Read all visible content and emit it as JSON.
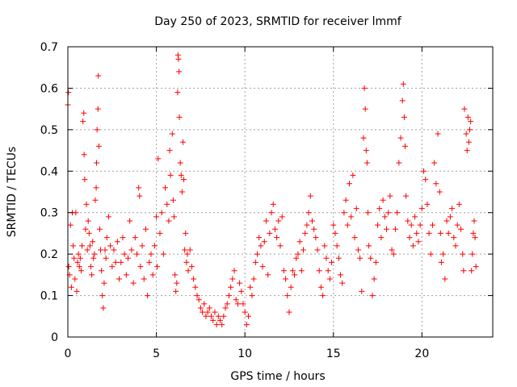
{
  "chart_data": {
    "type": "scatter",
    "title": "Day 250 of 2023, SRMTID for receiver lmmf",
    "xlabel": "GPS time / hours",
    "ylabel": "SRMTID / TECUs",
    "xlim": [
      0,
      24
    ],
    "ylim": [
      0,
      0.7
    ],
    "xticks": [
      0,
      5,
      10,
      15,
      20
    ],
    "xtick_labels": [
      "0",
      "5",
      "10",
      "15",
      "20"
    ],
    "yticks": [
      0,
      0.1,
      0.2,
      0.3,
      0.4,
      0.5,
      0.6,
      0.7
    ],
    "ytick_labels": [
      "0",
      "0.1",
      "0.2",
      "0.3",
      "0.4",
      "0.5",
      "0.6",
      "0.7"
    ],
    "grid": true,
    "marker": "+",
    "color": "#ff0000",
    "series": [
      {
        "name": "SRMTID",
        "points": [
          [
            0.0,
            0.56
          ],
          [
            0.03,
            0.59
          ],
          [
            0.05,
            0.17
          ],
          [
            0.1,
            0.15
          ],
          [
            0.15,
            0.27
          ],
          [
            0.2,
            0.12
          ],
          [
            0.25,
            0.3
          ],
          [
            0.3,
            0.22
          ],
          [
            0.35,
            0.19
          ],
          [
            0.4,
            0.14
          ],
          [
            0.45,
            0.3
          ],
          [
            0.5,
            0.11
          ],
          [
            0.55,
            0.18
          ],
          [
            0.6,
            0.2
          ],
          [
            0.65,
            0.17
          ],
          [
            0.7,
            0.19
          ],
          [
            0.75,
            0.16
          ],
          [
            0.8,
            0.22
          ],
          [
            0.85,
            0.52
          ],
          [
            0.9,
            0.54
          ],
          [
            0.92,
            0.44
          ],
          [
            0.95,
            0.38
          ],
          [
            1.0,
            0.26
          ],
          [
            1.05,
            0.32
          ],
          [
            1.1,
            0.21
          ],
          [
            1.15,
            0.28
          ],
          [
            1.2,
            0.25
          ],
          [
            1.25,
            0.22
          ],
          [
            1.3,
            0.17
          ],
          [
            1.35,
            0.15
          ],
          [
            1.4,
            0.23
          ],
          [
            1.45,
            0.19
          ],
          [
            1.5,
            0.2
          ],
          [
            1.55,
            0.33
          ],
          [
            1.6,
            0.36
          ],
          [
            1.62,
            0.42
          ],
          [
            1.65,
            0.5
          ],
          [
            1.7,
            0.55
          ],
          [
            1.72,
            0.63
          ],
          [
            1.75,
            0.46
          ],
          [
            1.8,
            0.26
          ],
          [
            1.85,
            0.21
          ],
          [
            1.9,
            0.16
          ],
          [
            1.95,
            0.1
          ],
          [
            2.0,
            0.07
          ],
          [
            2.05,
            0.13
          ],
          [
            2.1,
            0.21
          ],
          [
            2.15,
            0.19
          ],
          [
            2.2,
            0.24
          ],
          [
            2.3,
            0.29
          ],
          [
            2.4,
            0.22
          ],
          [
            2.5,
            0.17
          ],
          [
            2.6,
            0.21
          ],
          [
            2.7,
            0.18
          ],
          [
            2.8,
            0.23
          ],
          [
            2.9,
            0.14
          ],
          [
            3.0,
            0.18
          ],
          [
            3.1,
            0.24
          ],
          [
            3.2,
            0.2
          ],
          [
            3.3,
            0.15
          ],
          [
            3.4,
            0.19
          ],
          [
            3.5,
            0.28
          ],
          [
            3.6,
            0.21
          ],
          [
            3.7,
            0.13
          ],
          [
            3.8,
            0.24
          ],
          [
            3.9,
            0.2
          ],
          [
            4.0,
            0.36
          ],
          [
            4.05,
            0.34
          ],
          [
            4.1,
            0.17
          ],
          [
            4.2,
            0.22
          ],
          [
            4.3,
            0.14
          ],
          [
            4.4,
            0.26
          ],
          [
            4.5,
            0.1
          ],
          [
            4.6,
            0.18
          ],
          [
            4.7,
            0.2
          ],
          [
            4.8,
            0.15
          ],
          [
            4.9,
            0.22
          ],
          [
            5.0,
            0.29
          ],
          [
            5.05,
            0.17
          ],
          [
            5.1,
            0.43
          ],
          [
            5.2,
            0.25
          ],
          [
            5.3,
            0.3
          ],
          [
            5.4,
            0.2
          ],
          [
            5.5,
            0.36
          ],
          [
            5.6,
            0.32
          ],
          [
            5.7,
            0.28
          ],
          [
            5.75,
            0.45
          ],
          [
            5.8,
            0.39
          ],
          [
            5.9,
            0.49
          ],
          [
            5.95,
            0.33
          ],
          [
            6.0,
            0.29
          ],
          [
            6.05,
            0.15
          ],
          [
            6.1,
            0.11
          ],
          [
            6.15,
            0.13
          ],
          [
            6.2,
            0.59
          ],
          [
            6.22,
            0.68
          ],
          [
            6.25,
            0.67
          ],
          [
            6.28,
            0.64
          ],
          [
            6.3,
            0.53
          ],
          [
            6.35,
            0.42
          ],
          [
            6.4,
            0.39
          ],
          [
            6.45,
            0.35
          ],
          [
            6.5,
            0.47
          ],
          [
            6.55,
            0.38
          ],
          [
            6.6,
            0.21
          ],
          [
            6.65,
            0.25
          ],
          [
            6.7,
            0.18
          ],
          [
            6.75,
            0.2
          ],
          [
            6.8,
            0.16
          ],
          [
            6.9,
            0.21
          ],
          [
            7.0,
            0.17
          ],
          [
            7.1,
            0.14
          ],
          [
            7.2,
            0.12
          ],
          [
            7.3,
            0.1
          ],
          [
            7.4,
            0.09
          ],
          [
            7.5,
            0.07
          ],
          [
            7.6,
            0.06
          ],
          [
            7.7,
            0.08
          ],
          [
            7.8,
            0.05
          ],
          [
            7.9,
            0.06
          ],
          [
            8.0,
            0.07
          ],
          [
            8.1,
            0.05
          ],
          [
            8.2,
            0.04
          ],
          [
            8.3,
            0.06
          ],
          [
            8.4,
            0.03
          ],
          [
            8.5,
            0.05
          ],
          [
            8.6,
            0.04
          ],
          [
            8.7,
            0.03
          ],
          [
            8.8,
            0.05
          ],
          [
            8.9,
            0.07
          ],
          [
            9.0,
            0.08
          ],
          [
            9.1,
            0.1
          ],
          [
            9.2,
            0.12
          ],
          [
            9.3,
            0.14
          ],
          [
            9.4,
            0.16
          ],
          [
            9.5,
            0.09
          ],
          [
            9.6,
            0.08
          ],
          [
            9.7,
            0.13
          ],
          [
            9.8,
            0.11
          ],
          [
            9.9,
            0.08
          ],
          [
            10.0,
            0.06
          ],
          [
            10.1,
            0.03
          ],
          [
            10.2,
            0.05
          ],
          [
            10.3,
            0.12
          ],
          [
            10.4,
            0.1
          ],
          [
            10.5,
            0.14
          ],
          [
            10.6,
            0.18
          ],
          [
            10.7,
            0.2
          ],
          [
            10.8,
            0.24
          ],
          [
            10.9,
            0.22
          ],
          [
            11.0,
            0.17
          ],
          [
            11.1,
            0.23
          ],
          [
            11.2,
            0.28
          ],
          [
            11.3,
            0.15
          ],
          [
            11.4,
            0.25
          ],
          [
            11.5,
            0.3
          ],
          [
            11.6,
            0.32
          ],
          [
            11.7,
            0.26
          ],
          [
            11.8,
            0.24
          ],
          [
            11.9,
            0.28
          ],
          [
            12.0,
            0.22
          ],
          [
            12.1,
            0.29
          ],
          [
            12.2,
            0.16
          ],
          [
            12.3,
            0.14
          ],
          [
            12.4,
            0.1
          ],
          [
            12.5,
            0.06
          ],
          [
            12.6,
            0.12
          ],
          [
            12.7,
            0.16
          ],
          [
            12.8,
            0.15
          ],
          [
            12.9,
            0.19
          ],
          [
            13.0,
            0.2
          ],
          [
            13.1,
            0.23
          ],
          [
            13.2,
            0.16
          ],
          [
            13.3,
            0.21
          ],
          [
            13.4,
            0.25
          ],
          [
            13.5,
            0.27
          ],
          [
            13.6,
            0.3
          ],
          [
            13.7,
            0.34
          ],
          [
            13.8,
            0.28
          ],
          [
            13.9,
            0.26
          ],
          [
            14.0,
            0.24
          ],
          [
            14.1,
            0.21
          ],
          [
            14.2,
            0.16
          ],
          [
            14.3,
            0.12
          ],
          [
            14.4,
            0.1
          ],
          [
            14.5,
            0.22
          ],
          [
            14.6,
            0.19
          ],
          [
            14.7,
            0.16
          ],
          [
            14.8,
            0.14
          ],
          [
            14.9,
            0.18
          ],
          [
            15.0,
            0.27
          ],
          [
            15.1,
            0.25
          ],
          [
            15.2,
            0.22
          ],
          [
            15.3,
            0.19
          ],
          [
            15.4,
            0.15
          ],
          [
            15.5,
            0.13
          ],
          [
            15.6,
            0.3
          ],
          [
            15.7,
            0.33
          ],
          [
            15.8,
            0.27
          ],
          [
            15.9,
            0.37
          ],
          [
            16.0,
            0.29
          ],
          [
            16.1,
            0.39
          ],
          [
            16.2,
            0.24
          ],
          [
            16.3,
            0.31
          ],
          [
            16.4,
            0.21
          ],
          [
            16.5,
            0.19
          ],
          [
            16.6,
            0.11
          ],
          [
            16.7,
            0.48
          ],
          [
            16.75,
            0.6
          ],
          [
            16.8,
            0.55
          ],
          [
            16.85,
            0.45
          ],
          [
            16.9,
            0.42
          ],
          [
            16.95,
            0.3
          ],
          [
            17.0,
            0.22
          ],
          [
            17.1,
            0.19
          ],
          [
            17.2,
            0.1
          ],
          [
            17.3,
            0.14
          ],
          [
            17.4,
            0.18
          ],
          [
            17.5,
            0.27
          ],
          [
            17.6,
            0.31
          ],
          [
            17.7,
            0.24
          ],
          [
            17.8,
            0.33
          ],
          [
            17.9,
            0.29
          ],
          [
            18.0,
            0.26
          ],
          [
            18.1,
            0.3
          ],
          [
            18.2,
            0.34
          ],
          [
            18.3,
            0.21
          ],
          [
            18.4,
            0.2
          ],
          [
            18.5,
            0.26
          ],
          [
            18.6,
            0.3
          ],
          [
            18.7,
            0.42
          ],
          [
            18.8,
            0.48
          ],
          [
            18.9,
            0.57
          ],
          [
            18.95,
            0.61
          ],
          [
            19.0,
            0.53
          ],
          [
            19.05,
            0.46
          ],
          [
            19.1,
            0.34
          ],
          [
            19.2,
            0.28
          ],
          [
            19.3,
            0.24
          ],
          [
            19.4,
            0.27
          ],
          [
            19.5,
            0.22
          ],
          [
            19.6,
            0.29
          ],
          [
            19.7,
            0.25
          ],
          [
            19.8,
            0.23
          ],
          [
            19.9,
            0.27
          ],
          [
            20.0,
            0.31
          ],
          [
            20.1,
            0.4
          ],
          [
            20.2,
            0.38
          ],
          [
            20.3,
            0.32
          ],
          [
            20.4,
            0.25
          ],
          [
            20.5,
            0.2
          ],
          [
            20.6,
            0.27
          ],
          [
            20.7,
            0.42
          ],
          [
            20.8,
            0.37
          ],
          [
            20.9,
            0.49
          ],
          [
            21.0,
            0.35
          ],
          [
            21.05,
            0.25
          ],
          [
            21.1,
            0.18
          ],
          [
            21.2,
            0.2
          ],
          [
            21.3,
            0.14
          ],
          [
            21.4,
            0.28
          ],
          [
            21.5,
            0.25
          ],
          [
            21.6,
            0.29
          ],
          [
            21.7,
            0.31
          ],
          [
            21.8,
            0.24
          ],
          [
            21.9,
            0.22
          ],
          [
            22.0,
            0.27
          ],
          [
            22.1,
            0.32
          ],
          [
            22.2,
            0.26
          ],
          [
            22.3,
            0.2
          ],
          [
            22.35,
            0.16
          ],
          [
            22.4,
            0.55
          ],
          [
            22.5,
            0.49
          ],
          [
            22.55,
            0.45
          ],
          [
            22.6,
            0.53
          ],
          [
            22.65,
            0.47
          ],
          [
            22.7,
            0.5
          ],
          [
            22.75,
            0.52
          ],
          [
            22.8,
            0.16
          ],
          [
            22.85,
            0.2
          ],
          [
            22.9,
            0.25
          ],
          [
            22.95,
            0.28
          ],
          [
            23.0,
            0.24
          ],
          [
            23.05,
            0.17
          ]
        ]
      }
    ]
  }
}
